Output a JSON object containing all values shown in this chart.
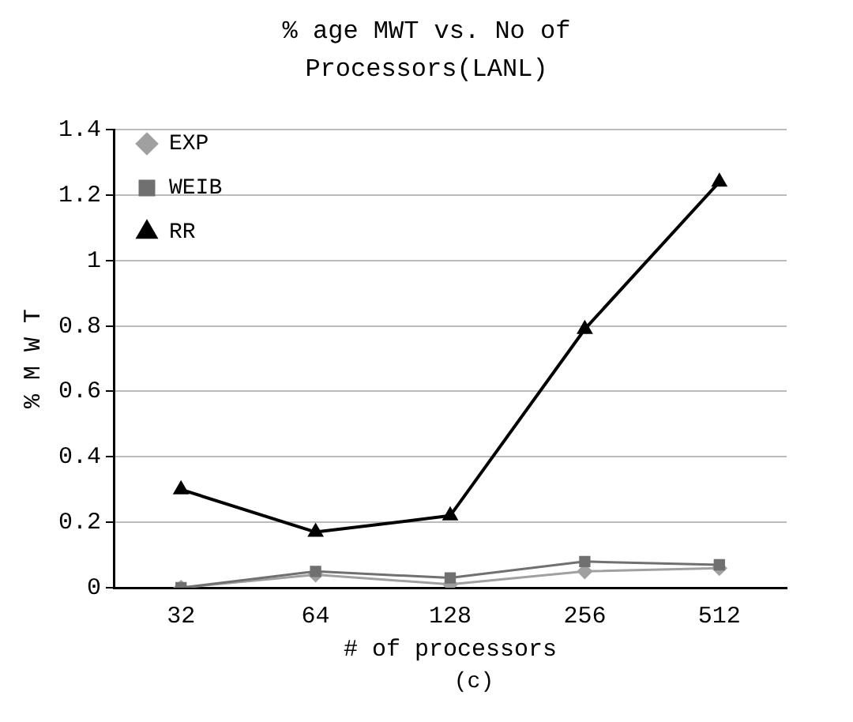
{
  "chart_data": {
    "type": "line",
    "title": "% age MWT vs. No of Processors(LANL)",
    "xlabel": "# of processors",
    "ylabel": "% M W T",
    "annotations": [
      "(c)"
    ],
    "categories": [
      "32",
      "64",
      "128",
      "256",
      "512"
    ],
    "series": [
      {
        "name": "EXP",
        "color": "#a0a0a0",
        "marker": "diamond",
        "values": [
          0,
          0.04,
          0.01,
          0.05,
          0.06
        ]
      },
      {
        "name": "WEIB",
        "color": "#707070",
        "marker": "square",
        "values": [
          0,
          0.05,
          0.03,
          0.08,
          0.07
        ]
      },
      {
        "name": "RR",
        "color": "#000000",
        "marker": "triangle",
        "values": [
          0.3,
          0.17,
          0.22,
          0.79,
          1.24
        ]
      }
    ],
    "ylim": [
      0,
      1.4
    ],
    "yticks": [
      0,
      0.2,
      0.4,
      0.6,
      0.8,
      1,
      1.2,
      1.4
    ],
    "grid": "y",
    "legend": "top left",
    "line_style": "solid"
  }
}
